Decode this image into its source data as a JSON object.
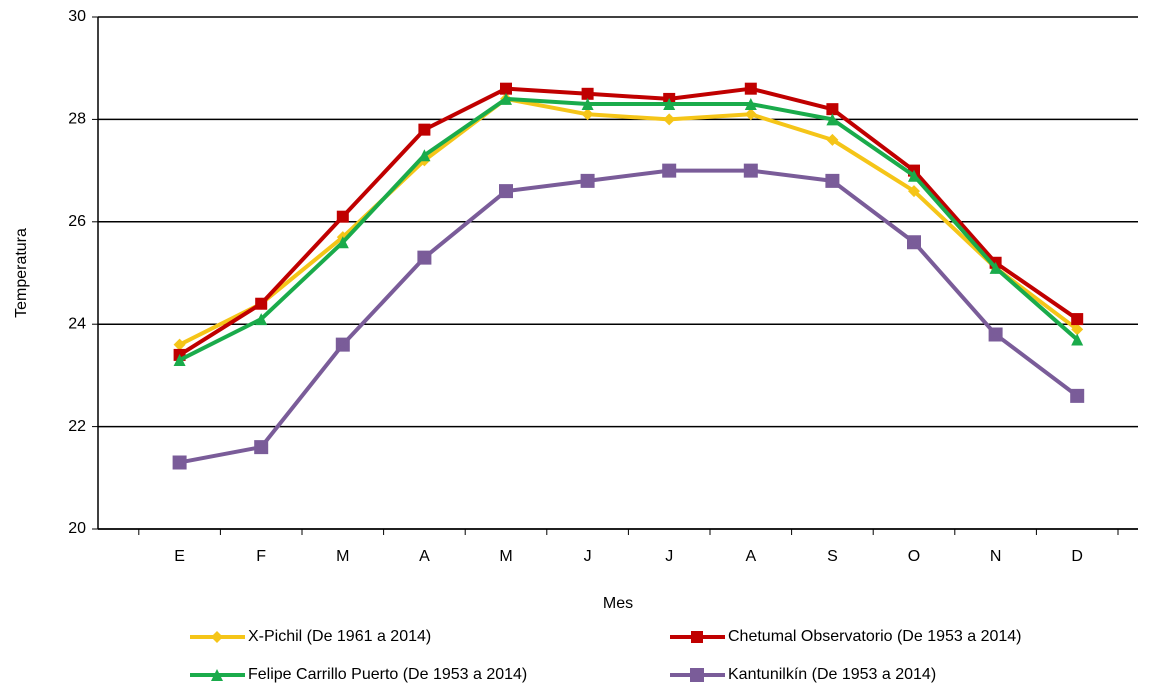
{
  "chart_data": {
    "type": "line",
    "x_label": "Mes",
    "y_label": "Temperatura",
    "categories": [
      "E",
      "F",
      "M",
      "A",
      "M",
      "J",
      "J",
      "A",
      "S",
      "O",
      "N",
      "D"
    ],
    "series": [
      {
        "name": "X-Pichil (De 1961 a 2014)",
        "color": "#f5c518",
        "marker": "diamond",
        "values": [
          23.6,
          24.4,
          25.7,
          27.2,
          28.4,
          28.1,
          28.0,
          28.1,
          27.6,
          26.6,
          25.1,
          23.9
        ]
      },
      {
        "name": "Chetumal Observatorio (De 1953 a 2014)",
        "color": "#c00000",
        "marker": "square",
        "values": [
          23.4,
          24.4,
          26.1,
          27.8,
          28.6,
          28.5,
          28.4,
          28.6,
          28.2,
          27.0,
          25.2,
          24.1
        ]
      },
      {
        "name": "Felipe Carrillo Puerto (De 1953 a 2014)",
        "color": "#1aab4b",
        "marker": "triangle",
        "values": [
          23.3,
          24.1,
          25.6,
          27.3,
          28.4,
          28.3,
          28.3,
          28.3,
          28.0,
          26.9,
          25.1,
          23.7
        ]
      },
      {
        "name": "Kantunilkín (De 1953 a 2014)",
        "color": "#7a5c99",
        "marker": "x",
        "values": [
          21.3,
          21.6,
          23.6,
          25.3,
          26.6,
          26.8,
          27.0,
          27.0,
          26.8,
          25.6,
          23.8,
          22.6
        ]
      }
    ],
    "ylim": [
      20,
      30
    ],
    "yticks": [
      20,
      22,
      24,
      26,
      28,
      30
    ],
    "grid": true
  }
}
